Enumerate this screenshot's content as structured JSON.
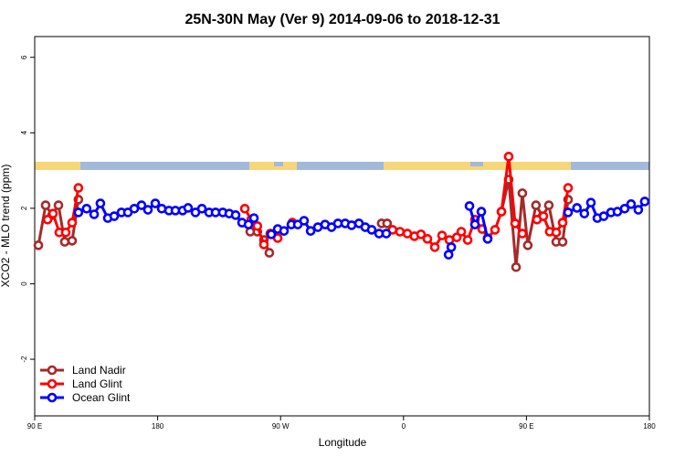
{
  "chart_data": {
    "type": "line",
    "title": "25N-30N May (Ver 9)   2014-09-06 to 2018-12-31",
    "x_label": "Longitude",
    "y_label": "XCO2 - MLO trend (ppm)",
    "xlim": [
      90,
      540
    ],
    "ylim": [
      -3.5,
      6.55
    ],
    "xticks": [
      {
        "value": 90,
        "label": "90 E"
      },
      180,
      {
        "value": 270,
        "label": "90 W"
      },
      {
        "value": 360,
        "label": "0"
      },
      {
        "value": 450,
        "label": "90 E"
      },
      {
        "value": 540,
        "label": "180"
      }
    ],
    "yticks": [
      -2,
      0,
      2,
      4,
      6
    ],
    "grid": false,
    "legend": "bottom-left",
    "series": [
      {
        "name": "Land Nadir",
        "color": "#a52a2a",
        "x": [
          92.7,
          98,
          102.7,
          107.4,
          112,
          117.4,
          122,
          null,
          247.8,
          253,
          257.8,
          261.8,
          null,
          344,
          348,
          null,
          431.7,
          437,
          442.4,
          447,
          451,
          457,
          461.8,
          466.4,
          471.8,
          476.5,
          480.5
        ],
        "values": [
          1.02,
          2.08,
          1.82,
          2.08,
          1.11,
          1.14,
          2.23,
          null,
          1.38,
          1.38,
          1.16,
          0.82,
          null,
          1.6,
          1.6,
          null,
          1.91,
          2.76,
          0.44,
          2.4,
          1.02,
          2.08,
          1.79,
          2.08,
          1.11,
          1.11,
          2.23
        ]
      },
      {
        "name": "Land Glint",
        "color": "#ff0000",
        "x": [
          99.4,
          103.4,
          108,
          112.7,
          117.4,
          122,
          null,
          243.8,
          248.5,
          253,
          257.8,
          262.5,
          267.9,
          null,
          278.6,
          null,
          352,
          357.4,
          362.8,
          368,
          372.8,
          377.5,
          382.9,
          388.2,
          393.6,
          399,
          402.3,
          407,
          412.3,
          417.6,
          421.6,
          427,
          431.7,
          437,
          441.7,
          447,
          null,
          457.7,
          462.4,
          467,
          471.8,
          476.5,
          480.5
        ],
        "values": [
          1.7,
          1.86,
          1.36,
          1.36,
          1.62,
          2.54,
          null,
          1.99,
          1.7,
          1.53,
          1.04,
          1.33,
          1.21,
          null,
          1.62,
          null,
          1.43,
          1.38,
          1.33,
          1.26,
          1.31,
          1.19,
          0.97,
          1.28,
          1.16,
          1.23,
          1.38,
          1.16,
          1.7,
          1.45,
          1.21,
          1.43,
          1.91,
          3.37,
          1.6,
          1.33,
          null,
          1.7,
          1.79,
          1.38,
          1.36,
          1.62,
          2.54
        ]
      },
      {
        "name": "Ocean Glint",
        "color": "#0000ff",
        "x": [
          122,
          128,
          133.5,
          138.1,
          143.5,
          148.2,
          153.5,
          158.2,
          162.9,
          168.2,
          172.9,
          178.3,
          183,
          188.3,
          193,
          198.3,
          202.3,
          207.7,
          212.4,
          217.7,
          222.4,
          227.7,
          232.4,
          237.1,
          241.8,
          246.5,
          250.5,
          null,
          263.2,
          267.9,
          272.5,
          277.9,
          282.6,
          287.2,
          292,
          297.3,
          302.6,
          307.3,
          312,
          317.3,
          322,
          327.4,
          332,
          336.7,
          342.1,
          347.4,
          null,
          393,
          395,
          null,
          408.3,
          412.3,
          417,
          421.6,
          null,
          480.5,
          487,
          492.4,
          497.2,
          501.9,
          506.6,
          511.9,
          516.6,
          521.9,
          526.6,
          531.9,
          536.6
        ],
        "values": [
          1.89,
          1.99,
          1.84,
          2.13,
          1.74,
          1.79,
          1.89,
          1.89,
          1.99,
          2.08,
          1.96,
          2.13,
          1.99,
          1.94,
          1.94,
          1.94,
          2.01,
          1.89,
          1.99,
          1.89,
          1.89,
          1.89,
          1.86,
          1.82,
          1.62,
          1.57,
          1.74,
          null,
          1.31,
          1.45,
          1.4,
          1.57,
          1.57,
          1.67,
          1.4,
          1.5,
          1.57,
          1.5,
          1.6,
          1.6,
          1.55,
          1.6,
          1.5,
          1.43,
          1.33,
          1.33,
          null,
          0.77,
          0.97,
          null,
          2.06,
          1.57,
          1.91,
          1.19,
          null,
          1.89,
          2.01,
          1.86,
          2.15,
          1.74,
          1.79,
          1.89,
          1.91,
          1.99,
          2.11,
          1.96,
          2.18
        ]
      }
    ]
  }
}
